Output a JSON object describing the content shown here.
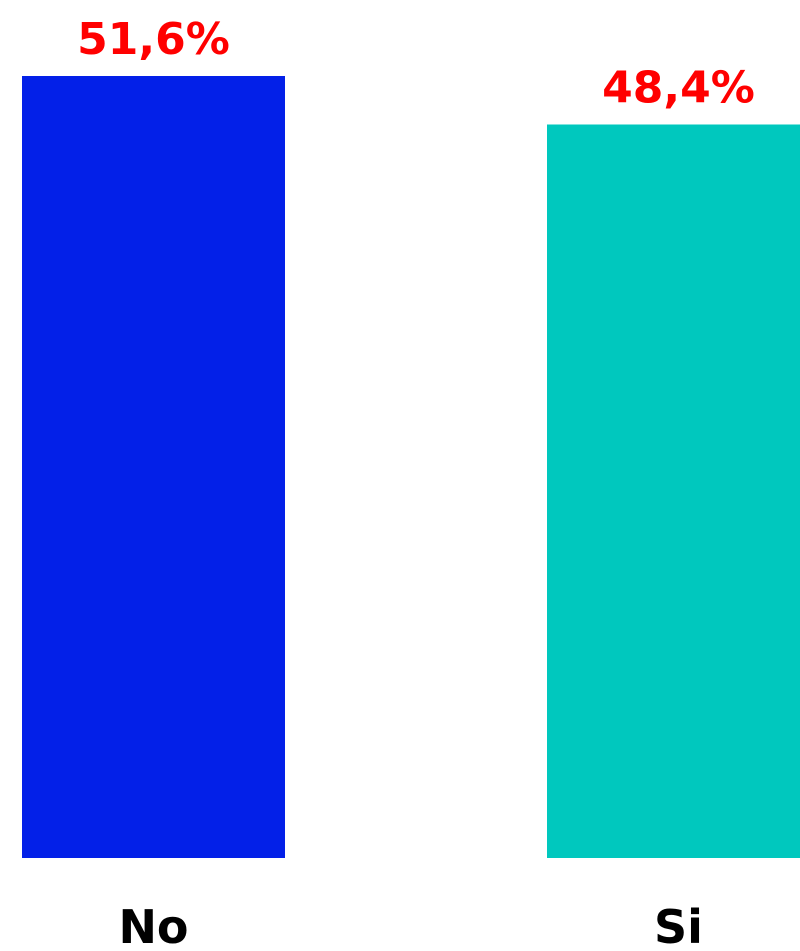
{
  "chart_data": {
    "type": "bar",
    "categories": [
      "No",
      "Si"
    ],
    "values": [
      51.6,
      48.4
    ],
    "data_labels": [
      "51,6%",
      "48,4%"
    ],
    "bar_colors": [
      "#0320E8",
      "#00C8BE"
    ],
    "label_color": "#FF0000",
    "ylim": [
      0,
      51.6
    ],
    "grid": false,
    "legend": "none"
  }
}
